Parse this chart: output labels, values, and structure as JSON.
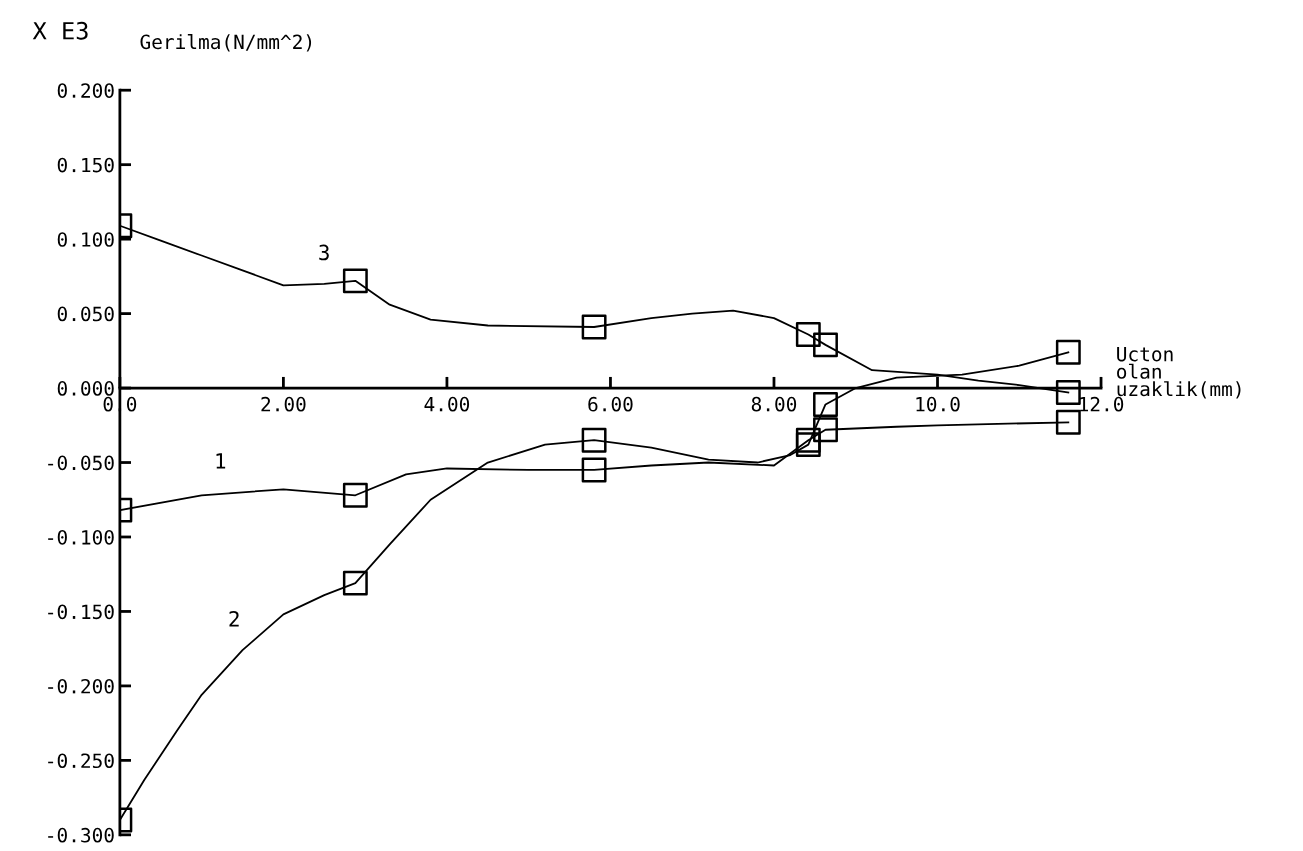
{
  "chart_data": {
    "type": "line",
    "ylabel": "Gerilma(N/mm^2)",
    "xlabel": "Ucton\nolan\nuzaklik(mm)",
    "xlim": [
      0,
      12.0
    ],
    "ylim": [
      -0.3,
      0.2
    ],
    "xticks": [
      {
        "value": 0,
        "label": "0.0"
      },
      {
        "value": 2,
        "label": "2.00"
      },
      {
        "value": 4,
        "label": "4.00"
      },
      {
        "value": 6,
        "label": "6.00"
      },
      {
        "value": 8,
        "label": "8.00"
      },
      {
        "value": 10,
        "label": "10.0"
      },
      {
        "value": 12,
        "label": "12.0"
      }
    ],
    "yticks": [
      {
        "value": 0.2,
        "label": "0.200"
      },
      {
        "value": 0.15,
        "label": "0.150"
      },
      {
        "value": 0.1,
        "label": "0.100"
      },
      {
        "value": 0.05,
        "label": "0.050"
      },
      {
        "value": 0,
        "label": "0.000"
      },
      {
        "value": -0.05,
        "label": "-0.050"
      },
      {
        "value": -0.1,
        "label": "-0.100"
      },
      {
        "value": -0.15,
        "label": "-0.150"
      },
      {
        "value": -0.2,
        "label": "-0.200"
      },
      {
        "value": -0.25,
        "label": "-0.250"
      },
      {
        "value": -0.3,
        "label": "-0.300"
      }
    ],
    "series": [
      {
        "marker": "none",
        "color": "#000000",
        "x": [
          0,
          0.5,
          1.0,
          1.5,
          2.0,
          2.5,
          2.88,
          3.3,
          3.8,
          4.5,
          5.8,
          6.5,
          7.0,
          7.5,
          8.0,
          8.42,
          8.63,
          9.2,
          10.0,
          10.5,
          11.0,
          11.6
        ],
        "values": [
          0.109,
          0.099,
          0.089,
          0.079,
          0.069,
          0.07,
          0.072,
          0.056,
          0.046,
          0.042,
          0.041,
          0.047,
          0.05,
          0.052,
          0.047,
          0.036,
          0.029,
          0.012,
          0.009,
          0.005,
          0.002,
          -0.003
        ]
      },
      {
        "marker": "none",
        "color": "#000000",
        "x": [
          0,
          1.0,
          2.0,
          2.88,
          3.5,
          4.0,
          5.0,
          5.8,
          6.5,
          7.2,
          8.0,
          8.42,
          8.63,
          9.5,
          10.0,
          11.6
        ],
        "values": [
          -0.082,
          -0.072,
          -0.068,
          -0.072,
          -0.058,
          -0.054,
          -0.055,
          -0.055,
          -0.052,
          -0.05,
          -0.052,
          -0.035,
          -0.028,
          -0.026,
          -0.025,
          -0.023
        ]
      },
      {
        "marker": "none",
        "color": "#000000",
        "x": [
          0,
          0.3,
          0.7,
          1.0,
          1.5,
          2.0,
          2.5,
          2.88,
          3.3,
          3.8,
          4.5,
          5.2,
          5.8,
          6.5,
          7.2,
          7.8,
          8.2,
          8.42,
          8.63,
          9.0,
          9.5,
          10.3,
          11.0,
          11.6
        ],
        "values": [
          -0.29,
          -0.263,
          -0.23,
          -0.206,
          -0.176,
          -0.152,
          -0.139,
          -0.131,
          -0.105,
          -0.075,
          -0.05,
          -0.038,
          -0.035,
          -0.04,
          -0.048,
          -0.05,
          -0.045,
          -0.038,
          -0.011,
          0,
          0.007,
          0.009,
          0.015,
          0.024
        ]
      },
      {
        "type": "scatter",
        "marker": "square",
        "color": "#000000",
        "x": [
          0,
          2.88,
          5.8,
          8.42,
          8.63,
          11.6
        ],
        "values": [
          0.109,
          0.072,
          0.041,
          0.036,
          0.029,
          -0.003
        ]
      },
      {
        "type": "scatter",
        "marker": "square",
        "color": "#000000",
        "x": [
          0,
          2.88,
          5.8,
          8.42,
          8.63,
          11.6
        ],
        "values": [
          -0.082,
          -0.072,
          -0.055,
          -0.035,
          -0.028,
          -0.023
        ]
      },
      {
        "type": "scatter",
        "marker": "square",
        "color": "#000000",
        "x": [
          0,
          2.88,
          5.8,
          8.42,
          8.63,
          11.6
        ],
        "values": [
          -0.29,
          -0.131,
          -0.035,
          -0.038,
          -0.011,
          0.024
        ]
      }
    ],
    "annotations": [
      "X E3",
      {
        "text": "3",
        "x": 2.6,
        "y": 0.07
      },
      {
        "text": "1",
        "x": 1.33,
        "y": -0.07
      },
      {
        "text": "2",
        "x": 1.5,
        "y": -0.176
      }
    ]
  }
}
